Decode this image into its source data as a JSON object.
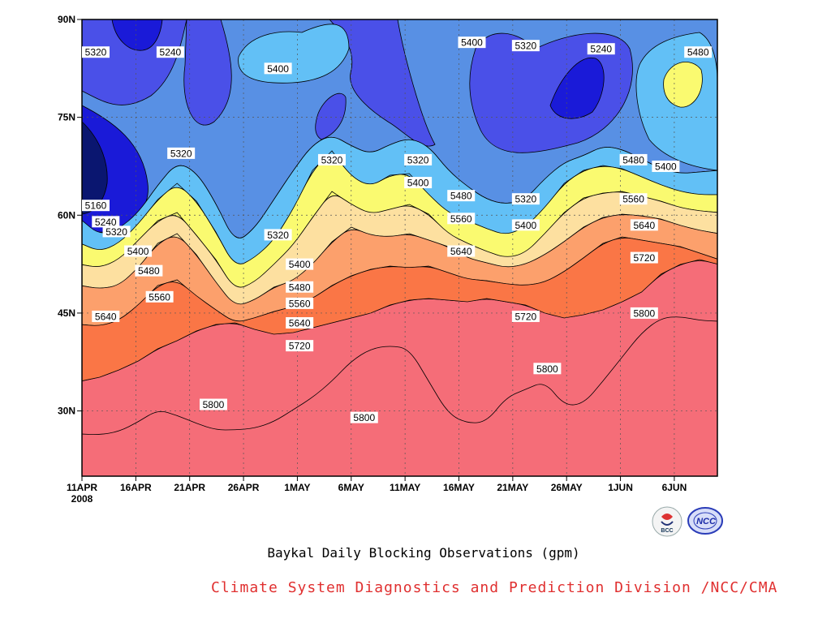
{
  "chart_data": {
    "type": "contour",
    "title": "Baykal Daily Blocking Observations (gpm)",
    "x_axis": {
      "ticks": [
        "11APR",
        "16APR",
        "21APR",
        "26APR",
        "1MAY",
        "6MAY",
        "11MAY",
        "16MAY",
        "21MAY",
        "26MAY",
        "1JUN",
        "6JUN"
      ],
      "first_tick_year": "2008",
      "range": [
        "2008-04-11",
        "2008-06-09"
      ]
    },
    "y_axis": {
      "ticks": [
        "30N",
        "45N",
        "60N",
        "75N",
        "90N"
      ],
      "range": [
        20,
        90
      ],
      "units": "degrees north"
    },
    "contour_levels": [
      5160,
      5240,
      5320,
      5400,
      5480,
      5560,
      5640,
      5720,
      5800
    ],
    "fill_colors": {
      "below_5160": "#0a1670",
      "5160_5240": "#1a1ad8",
      "5240_5320": "#4a50e8",
      "5320_5400": "#5890e4",
      "5400_5480": "#62c0f6",
      "5480_5560": "#fafa70",
      "5560_5640": "#fde0a0",
      "5640_5720": "#fca06c",
      "5720_5800": "#fa7646",
      "above_5800": "#f56d78"
    },
    "contour_labels": [
      {
        "text": "5320",
        "date": "2008-04-11",
        "lat": 85
      },
      {
        "text": "5240",
        "date": "2008-04-18",
        "lat": 85
      },
      {
        "text": "5320",
        "date": "2008-04-19",
        "lat": 69.5
      },
      {
        "text": "5160",
        "date": "2008-04-11",
        "lat": 61.5
      },
      {
        "text": "5240",
        "date": "2008-04-12",
        "lat": 59
      },
      {
        "text": "5320",
        "date": "2008-04-13",
        "lat": 57.5
      },
      {
        "text": "5400",
        "date": "2008-04-15",
        "lat": 54.5
      },
      {
        "text": "5480",
        "date": "2008-04-16",
        "lat": 51.5
      },
      {
        "text": "5560",
        "date": "2008-04-17",
        "lat": 47.5
      },
      {
        "text": "5640",
        "date": "2008-04-12",
        "lat": 44.5
      },
      {
        "text": "5800",
        "date": "2008-04-22",
        "lat": 31
      },
      {
        "text": "5400",
        "date": "2008-04-28",
        "lat": 82.5
      },
      {
        "text": "5320",
        "date": "2008-04-28",
        "lat": 57
      },
      {
        "text": "5400",
        "date": "2008-04-30",
        "lat": 52.5
      },
      {
        "text": "5480",
        "date": "2008-04-30",
        "lat": 49
      },
      {
        "text": "5560",
        "date": "2008-04-30",
        "lat": 46.5
      },
      {
        "text": "5640",
        "date": "2008-04-30",
        "lat": 43.5
      },
      {
        "text": "5720",
        "date": "2008-04-30",
        "lat": 40
      },
      {
        "text": "5320",
        "date": "2008-05-03",
        "lat": 68.5
      },
      {
        "text": "5800",
        "date": "2008-05-06",
        "lat": 29
      },
      {
        "text": "5320",
        "date": "2008-05-11",
        "lat": 68.5
      },
      {
        "text": "5400",
        "date": "2008-05-11",
        "lat": 65
      },
      {
        "text": "5480",
        "date": "2008-05-15",
        "lat": 63
      },
      {
        "text": "5560",
        "date": "2008-05-15",
        "lat": 59.5
      },
      {
        "text": "5640",
        "date": "2008-05-15",
        "lat": 54.5
      },
      {
        "text": "5400",
        "date": "2008-05-16",
        "lat": 86.5
      },
      {
        "text": "5320",
        "date": "2008-05-21",
        "lat": 86
      },
      {
        "text": "5320",
        "date": "2008-05-21",
        "lat": 62.5
      },
      {
        "text": "5400",
        "date": "2008-05-21",
        "lat": 58.5
      },
      {
        "text": "5720",
        "date": "2008-05-21",
        "lat": 44.5
      },
      {
        "text": "5800",
        "date": "2008-05-23",
        "lat": 36.5
      },
      {
        "text": "5240",
        "date": "2008-05-28",
        "lat": 85.5
      },
      {
        "text": "5480",
        "date": "2008-05-31",
        "lat": 68.5
      },
      {
        "text": "5560",
        "date": "2008-05-31",
        "lat": 62.5
      },
      {
        "text": "5640",
        "date": "2008-06-01",
        "lat": 58.5
      },
      {
        "text": "5720",
        "date": "2008-06-01",
        "lat": 53.5
      },
      {
        "text": "5800",
        "date": "2008-06-01",
        "lat": 45
      },
      {
        "text": "5400",
        "date": "2008-06-03",
        "lat": 67.5
      },
      {
        "text": "5480",
        "date": "2008-06-06",
        "lat": 85
      }
    ]
  },
  "caption": {
    "title": "Baykal Daily Blocking Observations (gpm)",
    "credit": "Climate System Diagnostics and Prediction Division /NCC/CMA"
  },
  "logos": [
    {
      "name": "bcc-logo",
      "text": "BCC"
    },
    {
      "name": "ncc-logo",
      "text": "NCC"
    }
  ]
}
